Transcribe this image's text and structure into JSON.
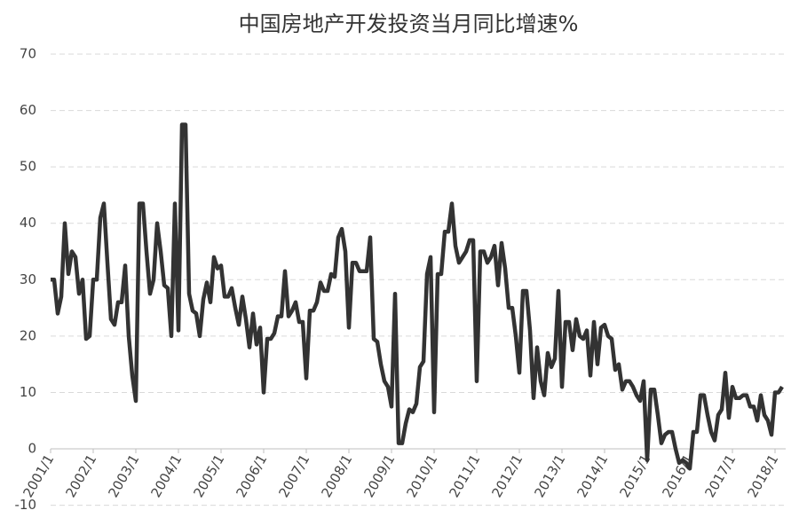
{
  "chart_data": {
    "type": "line",
    "title": "中国房地产开发投资当月同比增速%",
    "categories": [
      "2001/1",
      null,
      null,
      null,
      null,
      null,
      null,
      null,
      null,
      null,
      null,
      null,
      "2002/1",
      null,
      null,
      null,
      null,
      null,
      null,
      null,
      null,
      null,
      null,
      null,
      "2003/1",
      null,
      null,
      null,
      null,
      null,
      null,
      null,
      null,
      null,
      null,
      null,
      "2004/1",
      null,
      null,
      null,
      null,
      null,
      null,
      null,
      null,
      null,
      null,
      null,
      "2005/1",
      null,
      null,
      null,
      null,
      null,
      null,
      null,
      null,
      null,
      null,
      null,
      "2006/1",
      null,
      null,
      null,
      null,
      null,
      null,
      null,
      null,
      null,
      null,
      null,
      "2007/1",
      null,
      null,
      null,
      null,
      null,
      null,
      null,
      null,
      null,
      null,
      null,
      "2008/1",
      null,
      null,
      null,
      null,
      null,
      null,
      null,
      null,
      null,
      null,
      null,
      "2009/1",
      null,
      null,
      null,
      null,
      null,
      null,
      null,
      null,
      null,
      null,
      null,
      "2010/1",
      null,
      null,
      null,
      null,
      null,
      null,
      null,
      null,
      null,
      null,
      null,
      "2011/1",
      null,
      null,
      null,
      null,
      null,
      null,
      null,
      null,
      null,
      null,
      null,
      "2012/1",
      null,
      null,
      null,
      null,
      null,
      null,
      null,
      null,
      null,
      null,
      null,
      "2013/1",
      null,
      null,
      null,
      null,
      null,
      null,
      null,
      null,
      null,
      null,
      null,
      "2014/1",
      null,
      null,
      null,
      null,
      null,
      null,
      null,
      null,
      null,
      null,
      null,
      "2015/1",
      null,
      null,
      null,
      null,
      null,
      null,
      null,
      null,
      null,
      null,
      null,
      "2016/1",
      null,
      null,
      null,
      null,
      null,
      null,
      null,
      null,
      null,
      null,
      null,
      "2017/1",
      null,
      null,
      null,
      null,
      null,
      null,
      null,
      null,
      null,
      null,
      null,
      "2018/1",
      null,
      null
    ],
    "values": [
      30,
      30,
      24,
      27,
      40,
      31,
      35,
      34,
      27.5,
      30,
      19.5,
      20,
      30,
      30,
      41,
      43.5,
      33,
      23,
      22,
      26,
      26,
      32.5,
      20,
      13,
      8.5,
      43.5,
      43.5,
      35,
      27.5,
      30,
      40,
      35,
      29,
      28.5,
      20,
      43.5,
      21,
      57.5,
      57.5,
      27.5,
      24.5,
      24,
      20,
      26.5,
      29.5,
      26,
      34,
      32,
      32.5,
      27,
      27,
      28.5,
      25,
      22,
      27,
      23,
      18,
      24,
      18.5,
      21.5,
      10,
      19.5,
      19.5,
      20.5,
      23.5,
      23.5,
      31.5,
      23.5,
      24.5,
      26,
      22.5,
      22.5,
      12.5,
      24.5,
      24.5,
      26,
      29.5,
      28,
      28,
      31,
      30.5,
      37.5,
      39,
      35,
      21.5,
      33,
      33,
      31.5,
      31.5,
      31.5,
      37.5,
      19.5,
      19,
      15,
      12,
      11,
      7.5,
      27.5,
      1,
      1,
      4.5,
      7,
      6.5,
      8,
      14.5,
      15.5,
      31,
      34,
      6.5,
      31,
      31,
      38.5,
      38.5,
      43.5,
      36,
      33,
      34,
      35,
      37,
      37,
      12,
      35,
      35,
      33,
      34,
      36,
      29,
      36.5,
      32,
      25,
      25,
      20,
      13.5,
      28,
      28,
      21,
      9,
      18,
      12,
      9.5,
      17,
      14.5,
      16,
      28,
      11,
      22.5,
      22.5,
      17.5,
      23,
      20,
      19.5,
      21,
      13,
      22.5,
      15,
      21.5,
      22,
      20,
      19.5,
      14,
      15,
      10.5,
      12,
      12,
      11,
      9.5,
      8.5,
      12,
      -2,
      10.5,
      10.5,
      6,
      1,
      2.5,
      3,
      3,
      0,
      -2.5,
      -2,
      -2.5,
      -3.5,
      3,
      3,
      9.5,
      9.5,
      6,
      3,
      1.5,
      6,
      7,
      13.5,
      5.5,
      11,
      9,
      9,
      9.5,
      9.5,
      7.5,
      7.5,
      5,
      9.5,
      6,
      5,
      2.5,
      10,
      10,
      11
    ],
    "color": "#333333",
    "ylim": [
      -10,
      70
    ],
    "yticks": [
      -10,
      0,
      10,
      20,
      30,
      40,
      50,
      60,
      70
    ],
    "grid": true
  }
}
